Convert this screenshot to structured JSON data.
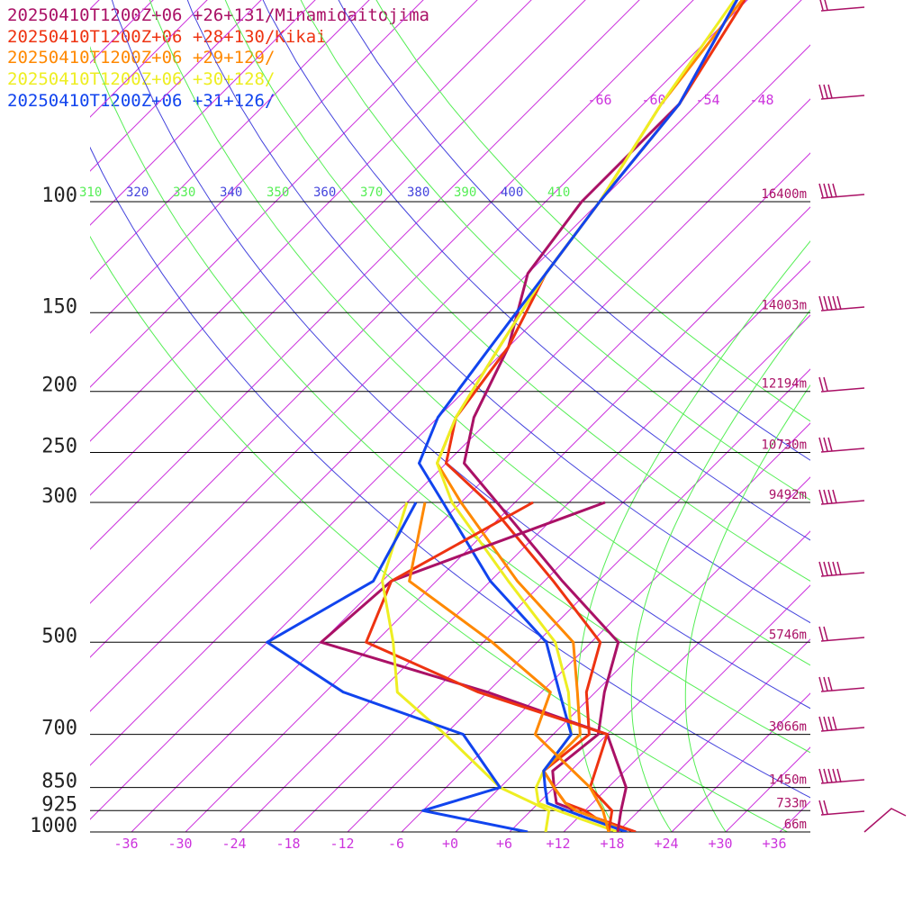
{
  "chart_data": {
    "type": "line",
    "title": "",
    "xlabel": "",
    "ylabel": "",
    "x_ticks": [
      "-36",
      "-30",
      "-24",
      "-18",
      "-12",
      "-6",
      "+0",
      "+6",
      "+12",
      "+18",
      "+24",
      "+30",
      "+36"
    ],
    "pressure_levels": [
      {
        "p": 100,
        "label": "100",
        "height": "16400m"
      },
      {
        "p": 150,
        "label": "150",
        "height": "14003m"
      },
      {
        "p": 200,
        "label": "200",
        "height": "12194m"
      },
      {
        "p": 250,
        "label": "250",
        "height": "10730m"
      },
      {
        "p": 300,
        "label": "300",
        "height": "9492m"
      },
      {
        "p": 500,
        "label": "500",
        "height": "5746m"
      },
      {
        "p": 700,
        "label": "700",
        "height": "3066m"
      },
      {
        "p": 850,
        "label": "850",
        "height": "1450m"
      },
      {
        "p": 925,
        "label": "925",
        "height": "733m"
      },
      {
        "p": 1000,
        "label": "1000",
        "height": "66m"
      }
    ],
    "isotherm_labels": [
      "-66",
      "-60",
      "-54",
      "-48"
    ],
    "theta_labels": [
      {
        "text": "310",
        "color": "#55ee55"
      },
      {
        "text": "320",
        "color": "#4444dd"
      },
      {
        "text": "330",
        "color": "#55ee55"
      },
      {
        "text": "340",
        "color": "#4444dd"
      },
      {
        "text": "350",
        "color": "#55ee55"
      },
      {
        "text": "360",
        "color": "#4444dd"
      },
      {
        "text": "370",
        "color": "#55ee55"
      },
      {
        "text": "380",
        "color": "#4444dd"
      },
      {
        "text": "390",
        "color": "#55ee55"
      },
      {
        "text": "400",
        "color": "#4444dd"
      },
      {
        "text": "410",
        "color": "#55ee55"
      }
    ],
    "series": [
      {
        "name": "20250410T1200Z+06 +26+131/Minamidaitojima",
        "color": "#aa1166",
        "points": [
          [
            -70,
            20
          ],
          [
            -62,
            45
          ],
          [
            -56,
            70
          ],
          [
            -56,
            100
          ],
          [
            -54,
            130
          ],
          [
            -48,
            170
          ],
          [
            -44,
            220
          ],
          [
            -40,
            260
          ],
          [
            -32,
            300
          ],
          [
            -16,
            400
          ],
          [
            -3,
            500
          ],
          [
            1,
            600
          ],
          [
            5,
            700
          ],
          [
            4,
            800
          ],
          [
            6,
            850
          ],
          [
            8,
            900
          ],
          [
            11,
            925
          ],
          [
            14,
            950
          ],
          [
            20,
            1000
          ]
        ]
      },
      {
        "name": "20250410T1200Z+06 +28+130/Kikai",
        "color": "#ee3311",
        "points": [
          [
            -70,
            20
          ],
          [
            -61,
            45
          ],
          [
            -56,
            70
          ],
          [
            -54,
            100
          ],
          [
            -52,
            130
          ],
          [
            -48,
            170
          ],
          [
            -46,
            220
          ],
          [
            -42,
            260
          ],
          [
            -33,
            300
          ],
          [
            -17,
            400
          ],
          [
            -5,
            500
          ],
          [
            -1,
            600
          ],
          [
            4,
            700
          ],
          [
            3,
            800
          ],
          [
            6,
            850
          ],
          [
            9,
            900
          ],
          [
            12,
            925
          ],
          [
            14,
            950
          ],
          [
            20,
            1000
          ]
        ]
      },
      {
        "name": "20250410T1200Z+06 +29+129/",
        "color": "#ff8800",
        "points": [
          [
            -70,
            20
          ],
          [
            -61,
            45
          ],
          [
            -58,
            70
          ],
          [
            -54,
            100
          ],
          [
            -52,
            130
          ],
          [
            -49,
            170
          ],
          [
            -46,
            220
          ],
          [
            -43,
            260
          ],
          [
            -36,
            300
          ],
          [
            -21,
            400
          ],
          [
            -8,
            500
          ],
          [
            -2,
            600
          ],
          [
            3,
            700
          ],
          [
            3,
            800
          ],
          [
            6,
            850
          ],
          [
            9,
            900
          ],
          [
            11,
            925
          ],
          [
            14,
            950
          ],
          [
            19,
            1000
          ]
        ]
      },
      {
        "name": "20250410T1200Z+06 +30+128/",
        "color": "#eeee22",
        "points": [
          [
            -70,
            20
          ],
          [
            -62,
            45
          ],
          [
            -58,
            70
          ],
          [
            -54,
            100
          ],
          [
            -52,
            130
          ],
          [
            -49,
            170
          ],
          [
            -46,
            220
          ],
          [
            -43,
            260
          ],
          [
            -37,
            300
          ],
          [
            -22,
            400
          ],
          [
            -10,
            500
          ],
          [
            -3,
            600
          ],
          [
            2,
            700
          ],
          [
            3,
            800
          ],
          [
            4,
            850
          ],
          [
            6,
            900
          ],
          [
            9,
            925
          ],
          [
            12,
            950
          ],
          [
            18,
            1000
          ]
        ]
      },
      {
        "name": "20250410T1200Z+06 +31+126/",
        "color": "#1144ee",
        "points": [
          [
            -70,
            20
          ],
          [
            -62,
            45
          ],
          [
            -56,
            70
          ],
          [
            -54,
            100
          ],
          [
            -52,
            130
          ],
          [
            -50,
            170
          ],
          [
            -48,
            220
          ],
          [
            -45,
            260
          ],
          [
            -38,
            300
          ],
          [
            -24,
            400
          ],
          [
            -11,
            500
          ],
          [
            -4,
            600
          ],
          [
            2,
            700
          ],
          [
            3,
            800
          ],
          [
            5,
            850
          ],
          [
            7,
            900
          ],
          [
            10,
            925
          ],
          [
            13,
            950
          ],
          [
            19,
            1000
          ]
        ]
      }
    ],
    "dewpoint_series": [
      {
        "color": "#aa1166",
        "points": [
          [
            -20,
            300
          ],
          [
            -35,
            400
          ],
          [
            -36,
            500
          ],
          [
            -12,
            600
          ],
          [
            6,
            700
          ],
          [
            14,
            850
          ],
          [
            16,
            925
          ],
          [
            18,
            1000
          ]
        ]
      },
      {
        "color": "#ee3311",
        "points": [
          [
            -28,
            300
          ],
          [
            -35,
            400
          ],
          [
            -31,
            500
          ],
          [
            -13,
            600
          ],
          [
            6,
            700
          ],
          [
            10,
            850
          ],
          [
            15,
            925
          ],
          [
            17,
            1000
          ]
        ]
      },
      {
        "color": "#ff8800",
        "points": [
          [
            -40,
            300
          ],
          [
            -33,
            400
          ],
          [
            -17,
            500
          ],
          [
            -5,
            600
          ],
          [
            -2,
            700
          ],
          [
            10,
            850
          ],
          [
            14,
            925
          ],
          [
            17,
            1000
          ]
        ]
      },
      {
        "color": "#eeee22",
        "points": [
          [
            -42,
            300
          ],
          [
            -36,
            400
          ],
          [
            -28,
            500
          ],
          [
            -22,
            600
          ],
          [
            -12,
            700
          ],
          [
            0,
            850
          ],
          [
            8,
            925
          ],
          [
            10,
            1000
          ]
        ]
      },
      {
        "color": "#1144ee",
        "points": [
          [
            -41,
            300
          ],
          [
            -37,
            400
          ],
          [
            -42,
            500
          ],
          [
            -28,
            600
          ],
          [
            -10,
            700
          ],
          [
            0,
            850
          ],
          [
            -6,
            925
          ],
          [
            8,
            1000
          ]
        ]
      }
    ],
    "legend_placement": "top-left",
    "grid": true
  }
}
